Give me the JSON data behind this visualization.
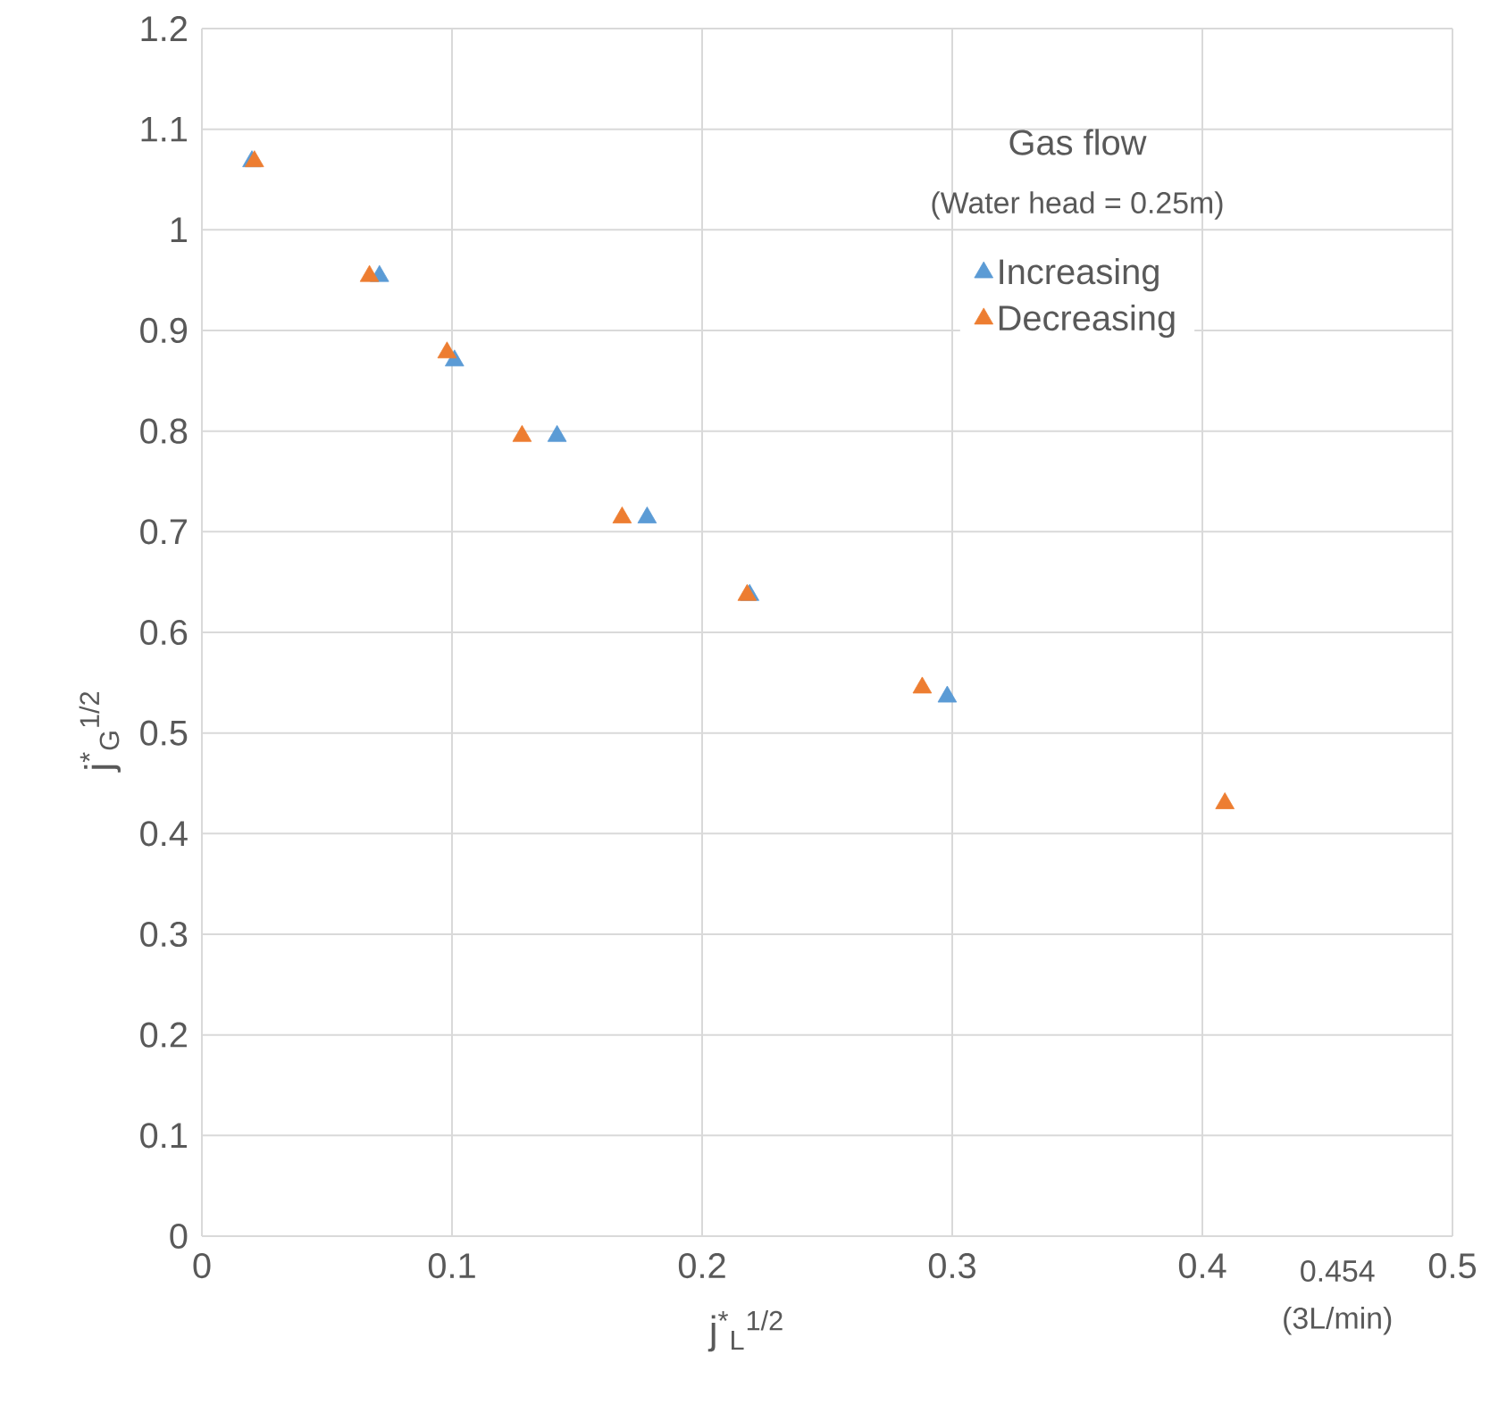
{
  "chart_data": {
    "type": "scatter",
    "xlabel": "j$^{*}$$_{L}$$^{1/2}$",
    "ylabel": "j$^{*}$$_{G}$$^{1/2}$",
    "legend_title": "Gas flow",
    "annotations": [
      "(Water head = 0.25m)",
      "0.454",
      "(3L/min)"
    ],
    "series": [
      {
        "name": "Increasing",
        "color": "#5b9bd5",
        "x": [
          0.02,
          0.071,
          0.101,
          0.142,
          0.178,
          0.219,
          0.298
        ],
        "values": [
          1.068,
          0.954,
          0.87,
          0.795,
          0.714,
          0.637,
          0.536
        ]
      },
      {
        "name": "Decreasing",
        "color": "#ed7d31",
        "x": [
          0.021,
          0.067,
          0.098,
          0.128,
          0.168,
          0.218,
          0.288,
          0.409
        ],
        "values": [
          1.068,
          0.954,
          0.878,
          0.795,
          0.714,
          0.637,
          0.545,
          0.43
        ]
      }
    ],
    "xlim": [
      0,
      0.5
    ],
    "ylim": [
      0,
      1.2
    ],
    "xticks": [
      0,
      0.1,
      0.2,
      0.3,
      0.4,
      0.5
    ],
    "yticks": [
      0,
      0.1,
      0.2,
      0.3,
      0.4,
      0.5,
      0.6,
      0.7,
      0.8,
      0.9,
      1,
      1.1,
      1.2
    ],
    "grid": true,
    "legend": "top right",
    "marker": "triangle"
  }
}
